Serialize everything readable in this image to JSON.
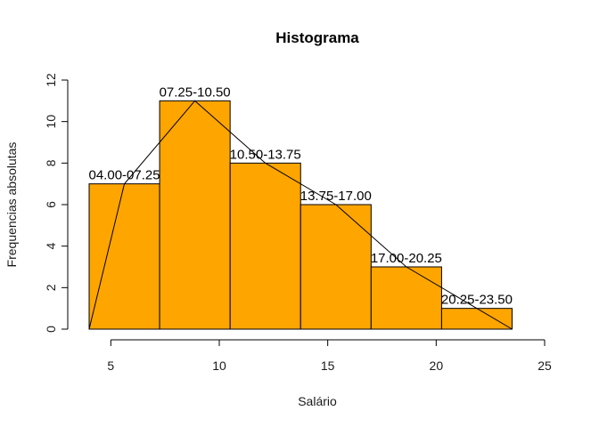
{
  "chart_data": {
    "type": "bar",
    "title": "Histograma",
    "xlabel": "Salário",
    "ylabel": "Frequencias absolutas",
    "xlim": [
      4,
      25
    ],
    "ylim": [
      0,
      12
    ],
    "x_ticks": [
      "5",
      "10",
      "15",
      "20",
      "25"
    ],
    "y_ticks": [
      "0",
      "2",
      "4",
      "6",
      "8",
      "10",
      "12"
    ],
    "bins": [
      {
        "from": 4.0,
        "to": 7.25,
        "label": "04.00-07.25",
        "value": 7
      },
      {
        "from": 7.25,
        "to": 10.5,
        "label": "07.25-10.50",
        "value": 11
      },
      {
        "from": 10.5,
        "to": 13.75,
        "label": "10.50-13.75",
        "value": 8
      },
      {
        "from": 13.75,
        "to": 17.0,
        "label": "13.75-17.00",
        "value": 6
      },
      {
        "from": 17.0,
        "to": 20.25,
        "label": "17.00-20.25",
        "value": 3
      },
      {
        "from": 20.25,
        "to": 23.5,
        "label": "20.25-23.50",
        "value": 1
      }
    ],
    "frequency_polygon": {
      "x": [
        4.0,
        5.625,
        8.875,
        12.125,
        15.375,
        18.625,
        23.5
      ],
      "y": [
        0,
        7,
        11,
        8,
        6,
        3,
        0
      ]
    },
    "bar_color": "#FFA500",
    "grid": false,
    "legend": "none"
  }
}
